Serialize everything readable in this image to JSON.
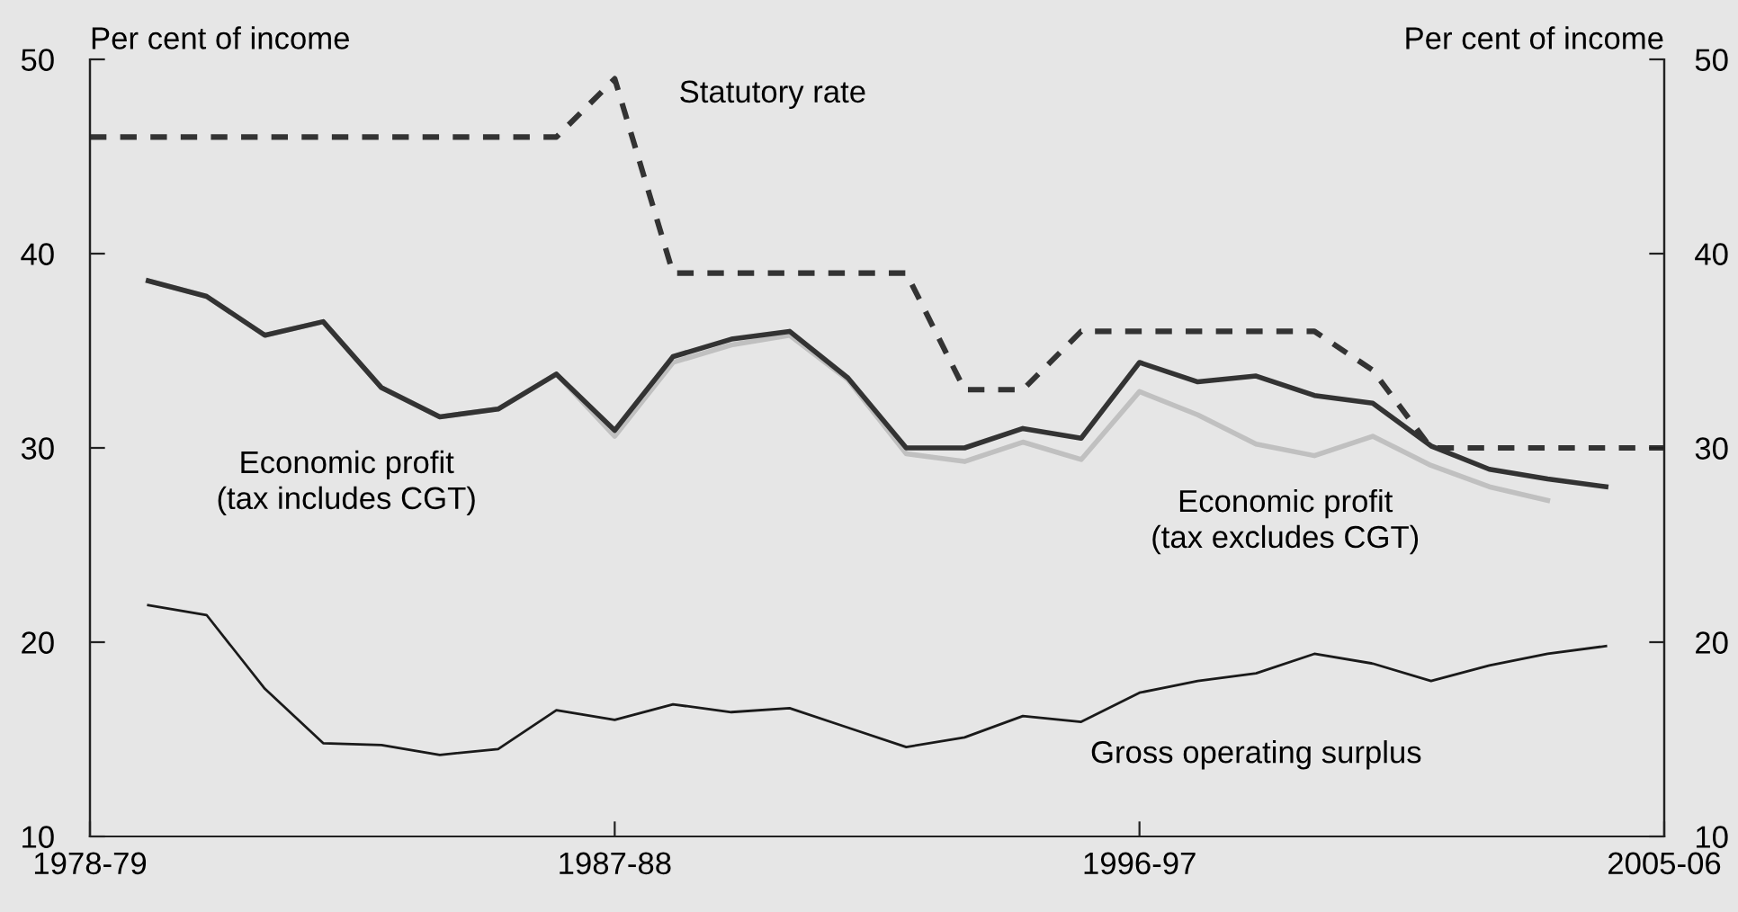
{
  "chart_data": {
    "type": "line",
    "ylabel": "Per cent of income",
    "y2label": "Per cent of income",
    "categories": [
      "1978-79",
      null,
      null,
      null,
      null,
      null,
      null,
      null,
      null,
      "1987-88",
      null,
      null,
      null,
      null,
      null,
      null,
      null,
      null,
      "1996-97",
      null,
      null,
      null,
      null,
      null,
      null,
      null,
      null,
      "2005-06"
    ],
    "series": [
      {
        "name": "Statutory rate",
        "color": "#333333",
        "line_style": "dashed",
        "values": [
          46,
          46,
          46,
          46,
          46,
          46,
          46,
          46,
          46,
          49,
          39,
          39,
          39,
          39,
          39,
          33,
          33,
          36,
          36,
          36,
          36,
          36,
          34,
          30,
          30,
          30,
          30,
          30
        ]
      },
      {
        "name": "Economic profit\n(tax excludes CGT)",
        "color": "#c0c0c0",
        "values": [
          null,
          38.6,
          37.8,
          35.8,
          36.5,
          33.1,
          31.6,
          32.0,
          33.8,
          30.6,
          34.4,
          35.3,
          35.8,
          33.5,
          29.7,
          29.3,
          30.3,
          29.4,
          32.9,
          31.7,
          30.2,
          29.6,
          30.6,
          29.1,
          28.0,
          27.3,
          null,
          null
        ]
      },
      {
        "name": "Economic profit\n(tax includes CGT)",
        "color": "#333333",
        "values": [
          null,
          38.6,
          37.8,
          35.8,
          36.5,
          33.1,
          31.6,
          32.0,
          33.8,
          30.9,
          34.7,
          35.6,
          36.0,
          33.6,
          30.0,
          30.0,
          31.0,
          30.5,
          34.4,
          33.4,
          33.7,
          32.7,
          32.3,
          30.1,
          28.9,
          28.4,
          28.0,
          null
        ]
      },
      {
        "name": "Gross operating surplus",
        "color": "#1a1a1a",
        "values": [
          null,
          21.9,
          21.4,
          17.6,
          14.8,
          14.7,
          14.2,
          14.5,
          16.5,
          16.0,
          16.8,
          16.4,
          16.6,
          15.6,
          14.6,
          15.1,
          16.2,
          15.9,
          17.4,
          18.0,
          18.4,
          19.4,
          18.9,
          18.0,
          18.8,
          19.4,
          19.8,
          null
        ]
      }
    ],
    "ylim": [
      10,
      50
    ],
    "yticks": [
      10,
      20,
      30,
      40,
      50
    ],
    "y2lim": [
      10,
      50
    ],
    "y2ticks": [
      10,
      20,
      30,
      40,
      50
    ],
    "grid": false,
    "line_style": "solid",
    "marker": "none"
  }
}
